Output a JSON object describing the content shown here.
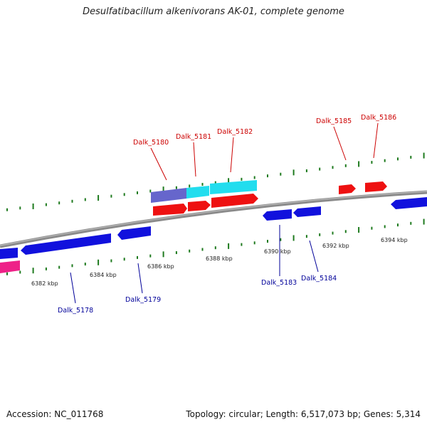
{
  "title": "Desulfatibacillum alkenivorans AK-01, complete genome",
  "footer": {
    "accession": "Accession: NC_011768",
    "stats": "Topology: circular; Length: 6,517,073 bp; Genes: 5,314"
  },
  "colors": {
    "background": "#ffffff",
    "backbone": "#8a8a8a",
    "tick": "#1e7a1e",
    "forward_gene": "#ee1111",
    "reverse_gene": "#1111dd",
    "cds_feature": "#22ddee",
    "cds_feature_alt": "#6666cc",
    "magenta_feature": "#ee2288",
    "forward_label": "#cc0000",
    "reverse_label": "#000099"
  },
  "scale_labels": [
    "6382 kbp",
    "6384 kbp",
    "6386 kbp",
    "6388 kbp",
    "6390 kbp",
    "6392 kbp",
    "6394 kbp"
  ],
  "gene_labels": [
    {
      "text": "Dalk_5178",
      "strand": "reverse"
    },
    {
      "text": "Dalk_5179",
      "strand": "reverse"
    },
    {
      "text": "Dalk_5180",
      "strand": "forward"
    },
    {
      "text": "Dalk_5181",
      "strand": "forward"
    },
    {
      "text": "Dalk_5182",
      "strand": "forward"
    },
    {
      "text": "Dalk_5183",
      "strand": "reverse"
    },
    {
      "text": "Dalk_5184",
      "strand": "reverse"
    },
    {
      "text": "Dalk_5185",
      "strand": "forward"
    },
    {
      "text": "Dalk_5186",
      "strand": "forward"
    }
  ]
}
